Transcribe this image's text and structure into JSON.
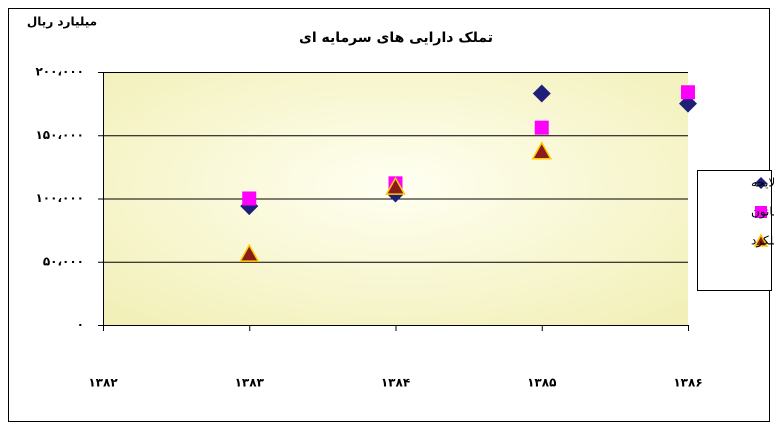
{
  "chart_data": {
    "type": "scatter",
    "title": "تملک دارایی های سرمایه ای",
    "y_label": "میلیارد ریال",
    "x": [
      1383,
      1384,
      1385,
      1386
    ],
    "series": [
      {
        "name": "لایحه",
        "color": "#1f1f7a",
        "marker": "diamond",
        "values": [
          94000,
          104000,
          183000,
          175000
        ]
      },
      {
        "name": "قانون",
        "color": "#ff00ff",
        "marker": "square",
        "values": [
          100000,
          112000,
          156000,
          184000
        ]
      },
      {
        "name": "عملکرد",
        "color": "#8b1a1a",
        "marker": "triangle",
        "values": [
          56000,
          109000,
          137000,
          null
        ]
      }
    ],
    "xlim": [
      1382,
      1386
    ],
    "xticks": [
      {
        "value": 1382,
        "label": "۱۳۸۲"
      },
      {
        "value": 1383,
        "label": "۱۳۸۳"
      },
      {
        "value": 1384,
        "label": "۱۳۸۴"
      },
      {
        "value": 1385,
        "label": "۱۳۸۵"
      },
      {
        "value": 1386,
        "label": "۱۳۸۶"
      }
    ],
    "ylim": [
      0,
      200000
    ],
    "yticks": [
      {
        "value": 0,
        "label": "۰"
      },
      {
        "value": 50000,
        "label": "۵۰،۰۰۰"
      },
      {
        "value": 100000,
        "label": "۱۰۰،۰۰۰"
      },
      {
        "value": 150000,
        "label": "۱۵۰،۰۰۰"
      },
      {
        "value": 200000,
        "label": "۲۰۰،۰۰۰"
      }
    ],
    "grid": true,
    "legend": "right"
  }
}
